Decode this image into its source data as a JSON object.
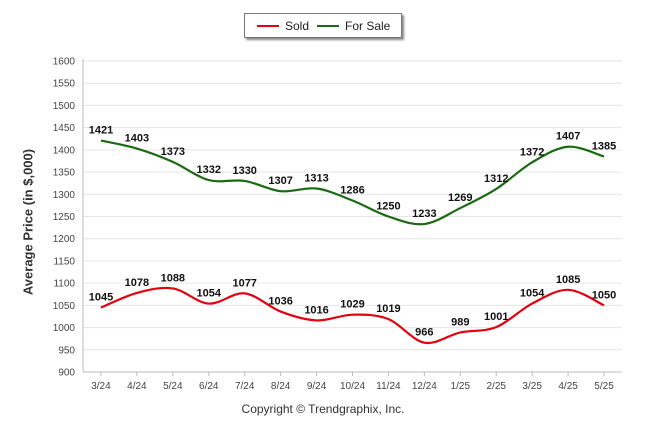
{
  "legend": [
    {
      "name": "Sold",
      "color": "#e3000f"
    },
    {
      "name": "For Sale",
      "color": "#1b6a12"
    }
  ],
  "footer": "Copyright © Trendgraphix, Inc.",
  "chart_data": {
    "type": "line",
    "ylabel": "Average Price (in $,000)",
    "xlabel": "",
    "ylim": [
      900,
      1600
    ],
    "yticks": [
      900,
      950,
      1000,
      1050,
      1100,
      1150,
      1200,
      1250,
      1300,
      1350,
      1400,
      1450,
      1500,
      1550,
      1600
    ],
    "grid": true,
    "legend_position": "top-center",
    "categories": [
      "3/24",
      "4/24",
      "5/24",
      "6/24",
      "7/24",
      "8/24",
      "9/24",
      "10/24",
      "11/24",
      "12/24",
      "1/25",
      "2/25",
      "3/25",
      "4/25",
      "5/25"
    ],
    "series": [
      {
        "name": "Sold",
        "color": "#e3000f",
        "values": [
          1045,
          1078,
          1088,
          1054,
          1077,
          1036,
          1016,
          1029,
          1019,
          966,
          989,
          1001,
          1054,
          1085,
          1050
        ]
      },
      {
        "name": "For Sale",
        "color": "#1b6a12",
        "values": [
          1421,
          1403,
          1373,
          1332,
          1330,
          1307,
          1313,
          1286,
          1250,
          1233,
          1269,
          1312,
          1372,
          1407,
          1385
        ]
      }
    ]
  }
}
